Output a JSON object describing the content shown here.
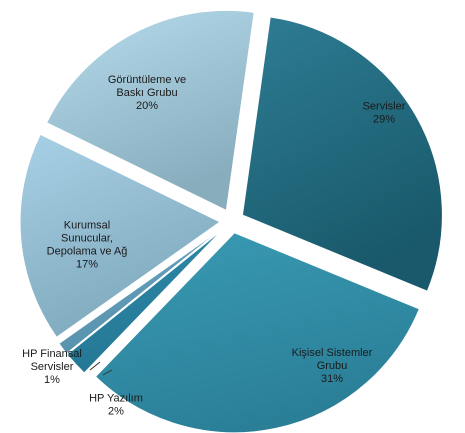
{
  "chart_data": {
    "type": "pie",
    "exploded": true,
    "slices": [
      {
        "label": "Servisler",
        "value": 29,
        "value_label": "29%",
        "color": "#2e7d94",
        "gradient_end": "#19596b",
        "text_color": "#1a1a1a"
      },
      {
        "label": "Kişisel Sistemler Grubu",
        "value": 31,
        "value_label": "31%",
        "color": "#3a9bb5",
        "gradient_end": "#2a7f97",
        "text_color": "#1a1a1a"
      },
      {
        "label": "HP Yazılım",
        "value": 2,
        "value_label": "2%",
        "color": "#2f8fb0",
        "gradient_end": "#237591",
        "text_color": "#1a1a1a"
      },
      {
        "label": "HP Finansal Servisler",
        "value": 1,
        "value_label": "1%",
        "color": "#6ea7c4",
        "gradient_end": "#5590ab",
        "text_color": "#1a1a1a"
      },
      {
        "label": "Kurumsal Sunucular, Depolama ve Ağ",
        "value": 17,
        "value_label": "17%",
        "color": "#a8d0e6",
        "gradient_end": "#7fa9bd",
        "text_color": "#1a1a1a"
      },
      {
        "label": "Görüntüleme ve Baskı Grubu",
        "value": 20,
        "value_label": "20%",
        "color": "#b6dced",
        "gradient_end": "#88adbd",
        "text_color": "#1a1a1a"
      }
    ],
    "label_lines": {
      "Servisler": [
        "Servisler"
      ],
      "Kişisel Sistemler Grubu": [
        "Kişisel Sistemler",
        "Grubu"
      ],
      "HP Yazılım": [
        "HP Yazılım"
      ],
      "HP Finansal Servisler": [
        "HP Finansal",
        "Servisler"
      ],
      "Kurumsal Sunucular, Depolama ve Ağ": [
        "Kurumsal",
        "Sunucular,",
        "Depolama ve Ağ"
      ],
      "Görüntüleme ve Baskı Grubu": [
        "Görüntüleme ve",
        "Baskı Grubu"
      ]
    }
  }
}
